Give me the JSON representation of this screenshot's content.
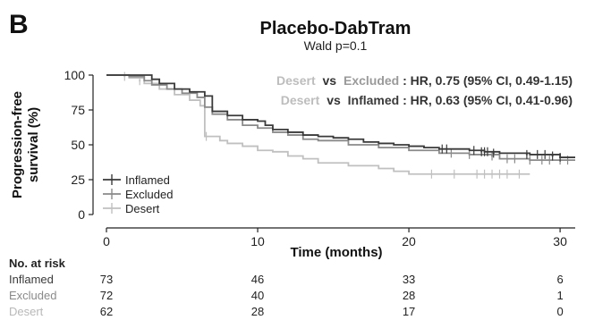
{
  "panel_label": "B",
  "chart_data": {
    "type": "line",
    "title": "Placebo-DabTram",
    "subtitle": "Wald p=0.1",
    "xlabel": "Time (months)",
    "ylabel_line1": "Progression-free",
    "ylabel_line2": "survival (%)",
    "xlim": [
      0,
      31
    ],
    "ylim": [
      0,
      100
    ],
    "xticks": [
      0,
      10,
      20,
      30
    ],
    "yticks": [
      0,
      25,
      50,
      75,
      100
    ],
    "grid": false,
    "legend_position": "bottom-left",
    "annotations": [
      {
        "group_a": "Desert",
        "vs": "vs",
        "group_b": "Excluded",
        "text": ": HR, 0.75 (95% CI, 0.49-1.15)"
      },
      {
        "group_a": "Desert",
        "vs": "vs",
        "group_b": "Inflamed",
        "text": ": HR, 0.63 (95% CI, 0.41-0.96)"
      }
    ],
    "series": [
      {
        "name": "Inflamed",
        "color": "#3a3a3a",
        "x": [
          0,
          2,
          3,
          3.5,
          4.5,
          5.5,
          6.5,
          7,
          8,
          9,
          10,
          10.5,
          11,
          12,
          13,
          14,
          15,
          16,
          17,
          18,
          19,
          20,
          21,
          22,
          24,
          25,
          26,
          28,
          30,
          31
        ],
        "y": [
          100,
          100,
          97,
          94,
          90,
          88,
          85,
          74,
          71,
          68,
          67,
          64,
          61,
          59,
          57,
          56,
          55,
          54,
          52,
          51,
          50,
          49,
          48,
          47,
          46,
          45,
          44,
          43,
          41,
          41
        ],
        "censor_x": [
          22.2,
          22.5,
          24.3,
          24.8,
          25.0,
          25.2,
          25.6,
          27.8,
          28.5,
          29.0,
          29.5,
          30.0
        ],
        "censor_y": [
          47,
          47,
          46,
          45,
          45,
          45,
          44,
          43,
          43,
          43,
          42,
          41
        ]
      },
      {
        "name": "Excluded",
        "color": "#8a8a8a",
        "x": [
          0,
          1.5,
          2.5,
          3,
          4,
          5,
          6,
          6.5,
          7,
          8,
          9,
          10,
          11,
          12,
          13,
          14,
          16,
          18,
          20,
          22,
          24,
          26,
          28,
          31
        ],
        "y": [
          100,
          99,
          96,
          93,
          90,
          87,
          84,
          77,
          72,
          68,
          64,
          62,
          59,
          57,
          54,
          53,
          50,
          48,
          46,
          44,
          43,
          40,
          39,
          39
        ],
        "censor_x": [
          22.8,
          24.0,
          25.5,
          26.5,
          27.0,
          28.0,
          28.8,
          29.3,
          30.0,
          30.5
        ],
        "censor_y": [
          44,
          43,
          42,
          40,
          40,
          39,
          39,
          39,
          39,
          39
        ]
      },
      {
        "name": "Desert",
        "color": "#c0c0c0",
        "x": [
          0,
          1.5,
          2.5,
          3.5,
          4.5,
          5.5,
          6.2,
          6.5,
          7,
          7.5,
          8,
          9,
          10,
          11,
          12,
          13,
          14,
          16,
          18,
          19,
          20,
          22,
          28
        ],
        "y": [
          100,
          98,
          94,
          90,
          86,
          82,
          78,
          56,
          56,
          53,
          51,
          49,
          46,
          45,
          42,
          40,
          37,
          35,
          33,
          31,
          29,
          29,
          29
        ],
        "censor_x": [
          1.2,
          2.2,
          6.6,
          21.5,
          23.0,
          24.5,
          25.0,
          25.5,
          26.0,
          26.5,
          27.3
        ],
        "censor_y": [
          99,
          96,
          56,
          29,
          29,
          29,
          29,
          29,
          29,
          29,
          29
        ]
      }
    ]
  },
  "risk_table": {
    "title": "No. at risk",
    "times": [
      0,
      10,
      20,
      30
    ],
    "rows": [
      {
        "label": "Inflamed",
        "color": "#3a3a3a",
        "counts": [
          "73",
          "46",
          "33",
          "6"
        ]
      },
      {
        "label": "Excluded",
        "color": "#8a8a8a",
        "counts": [
          "72",
          "40",
          "28",
          "1"
        ]
      },
      {
        "label": "Desert",
        "color": "#b8b8b8",
        "counts": [
          "62",
          "28",
          "17",
          "0"
        ]
      }
    ]
  }
}
